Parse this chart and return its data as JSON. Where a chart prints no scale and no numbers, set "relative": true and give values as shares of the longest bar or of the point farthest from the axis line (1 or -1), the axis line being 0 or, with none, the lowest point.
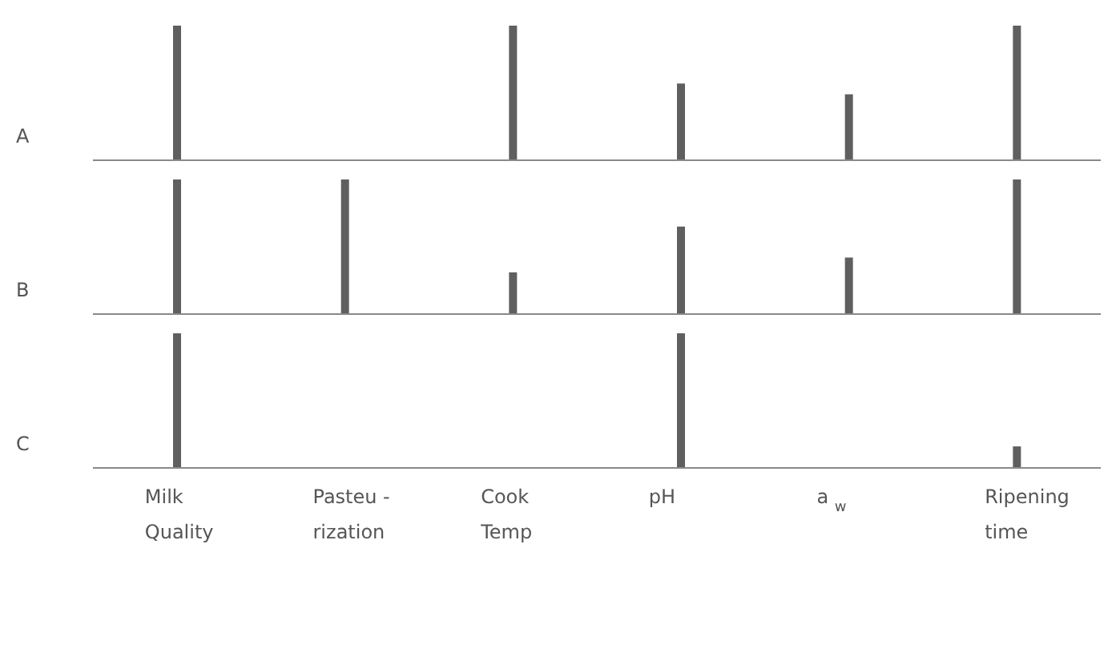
{
  "chart_data": [
    {
      "type": "bar",
      "ylabel": "A",
      "relative": true,
      "tick_labels": false,
      "color": "#5f5f5f",
      "categories": [
        "Milk\nQuality",
        "Pasteu -\nrization",
        "Cook\nTemp",
        "pH",
        "a $_{w}$",
        "Ripening\ntime"
      ],
      "values": [
        1,
        0,
        1,
        0.57,
        0.49,
        1
      ]
    },
    {
      "type": "bar",
      "ylabel": "B",
      "relative": true,
      "tick_labels": false,
      "color": "#5f5f5f",
      "categories": [
        "Milk\nQuality",
        "Pasteu -\nrization",
        "Cook\nTemp",
        "pH",
        "a $_{w}$",
        "Ripening\ntime"
      ],
      "values": [
        1,
        1,
        0.31,
        0.65,
        0.42,
        1
      ]
    },
    {
      "type": "bar",
      "ylabel": "C",
      "relative": true,
      "tick_labels": "x",
      "color": "#5f5f5f",
      "categories": [
        "Milk\nQuality",
        "Pasteu -\nrization",
        "Cook\nTemp",
        "pH",
        "a $_{w}$",
        "Ripening\ntime"
      ],
      "values": [
        1,
        0,
        0,
        1,
        0,
        0.16
      ]
    }
  ]
}
